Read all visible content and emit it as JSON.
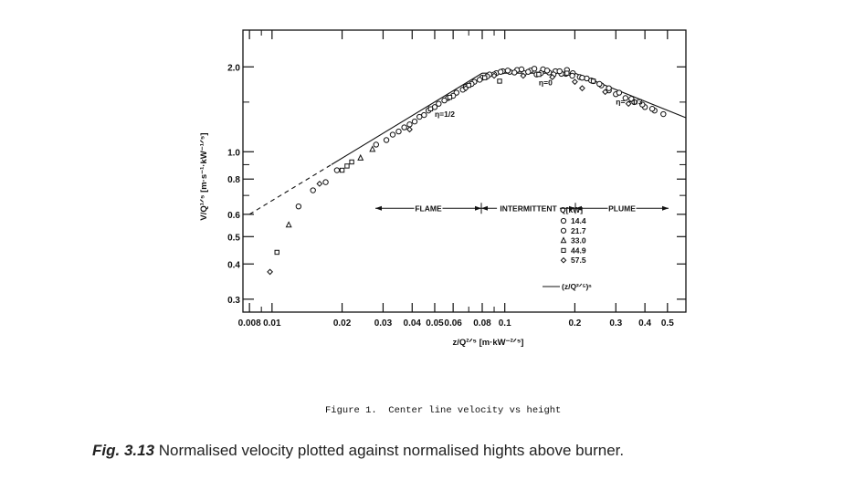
{
  "chart_data": {
    "type": "scatter",
    "xscale": "log",
    "yscale": "log",
    "xlim": [
      0.0075,
      0.6
    ],
    "ylim": [
      0.27,
      2.7
    ],
    "xlabel": "z/Q²ᐟ⁵ [m·kW⁻²ᐟ⁵]",
    "ylabel": "V/Q¹ᐟ⁵ [m·s⁻¹·kW⁻¹ᐟ⁵]",
    "x_ticks": [
      {
        "value": 0.008,
        "label": "0.008"
      },
      {
        "value": 0.01,
        "label": "0.01"
      },
      {
        "value": 0.02,
        "label": "0.02"
      },
      {
        "value": 0.03,
        "label": "0.03"
      },
      {
        "value": 0.04,
        "label": "0.04"
      },
      {
        "value": 0.05,
        "label": "0.05"
      },
      {
        "value": 0.06,
        "label": "0.06"
      },
      {
        "value": 0.08,
        "label": "0.08"
      },
      {
        "value": 0.1,
        "label": "0.1"
      },
      {
        "value": 0.2,
        "label": "0.2"
      },
      {
        "value": 0.3,
        "label": "0.3"
      },
      {
        "value": 0.4,
        "label": "0.4"
      },
      {
        "value": 0.5,
        "label": "0.5"
      }
    ],
    "y_ticks": [
      {
        "value": 0.3,
        "label": "0.3"
      },
      {
        "value": 0.4,
        "label": "0.4"
      },
      {
        "value": 0.5,
        "label": "0.5"
      },
      {
        "value": 0.6,
        "label": "0.6"
      },
      {
        "value": 0.8,
        "label": "0.8"
      },
      {
        "value": 1.0,
        "label": "1.0"
      },
      {
        "value": 2.0,
        "label": "2.0"
      }
    ],
    "legend": {
      "title": "Q[kW]",
      "placement": "center-right",
      "entries": [
        {
          "marker": "circle",
          "label": "14.4"
        },
        {
          "marker": "circle",
          "label": "21.7"
        },
        {
          "marker": "triangle",
          "label": "33.0"
        },
        {
          "marker": "square",
          "label": "44.9"
        },
        {
          "marker": "diamond",
          "label": "57.5"
        }
      ],
      "line_label": "(z/Q²ᐟ⁵)ⁿ"
    },
    "regions": [
      {
        "label": "FLAME",
        "x_from": 0.03,
        "x_to": 0.08
      },
      {
        "label": "INTERMITTENT",
        "x_from": 0.08,
        "x_to": 0.2
      },
      {
        "label": "PLUME",
        "x_from": 0.2,
        "x_to": 0.5
      }
    ],
    "annotations": [
      {
        "text": "η=1/2",
        "x": 0.05,
        "y": 1.33
      },
      {
        "text": "η=0",
        "x": 0.14,
        "y": 1.72
      },
      {
        "text": "η= −1/3",
        "x": 0.3,
        "y": 1.47
      }
    ],
    "fit_line": {
      "label": "(z/Q²ᐟ⁵)ⁿ",
      "segments": [
        {
          "eta": "1/2",
          "x": [
            0.008,
            0.08
          ],
          "y": [
            0.6,
            1.9
          ],
          "dashed_below": 0.018
        },
        {
          "eta": "0",
          "x": [
            0.08,
            0.2
          ],
          "y": [
            1.9,
            1.9
          ]
        },
        {
          "eta": "-1/3",
          "x": [
            0.2,
            0.6
          ],
          "y": [
            1.9,
            1.32
          ]
        }
      ]
    },
    "series": [
      {
        "name": "14.4",
        "marker": "circle",
        "x": [
          0.031,
          0.035,
          0.039,
          0.043,
          0.047,
          0.052,
          0.057,
          0.062,
          0.068,
          0.074,
          0.08,
          0.086,
          0.092,
          0.098,
          0.105,
          0.113,
          0.121,
          0.129,
          0.137,
          0.146,
          0.155,
          0.165,
          0.175,
          0.185,
          0.196,
          0.21,
          0.225,
          0.24,
          0.26,
          0.28,
          0.3,
          0.33,
          0.36,
          0.4,
          0.44,
          0.48
        ],
        "y": [
          1.1,
          1.18,
          1.25,
          1.33,
          1.4,
          1.48,
          1.55,
          1.62,
          1.7,
          1.77,
          1.83,
          1.88,
          1.9,
          1.93,
          1.92,
          1.95,
          1.9,
          1.94,
          1.88,
          1.96,
          1.91,
          1.93,
          1.89,
          1.95,
          1.9,
          1.84,
          1.82,
          1.78,
          1.72,
          1.65,
          1.6,
          1.55,
          1.5,
          1.44,
          1.4,
          1.36
        ]
      },
      {
        "name": "21.7",
        "marker": "circle",
        "x": [
          0.013,
          0.015,
          0.017,
          0.019,
          0.028,
          0.033,
          0.037,
          0.041,
          0.045,
          0.05,
          0.055,
          0.06,
          0.066,
          0.072,
          0.078,
          0.084,
          0.09,
          0.096,
          0.103,
          0.11,
          0.118,
          0.126,
          0.134,
          0.143,
          0.152,
          0.162,
          0.172,
          0.183,
          0.195,
          0.215,
          0.235,
          0.255,
          0.28,
          0.31,
          0.35,
          0.39,
          0.43
        ],
        "y": [
          0.64,
          0.73,
          0.78,
          0.86,
          1.06,
          1.15,
          1.22,
          1.28,
          1.35,
          1.44,
          1.52,
          1.58,
          1.66,
          1.74,
          1.8,
          1.85,
          1.88,
          1.92,
          1.94,
          1.91,
          1.96,
          1.92,
          1.97,
          1.9,
          1.94,
          1.88,
          1.93,
          1.89,
          1.86,
          1.83,
          1.79,
          1.74,
          1.68,
          1.62,
          1.54,
          1.47,
          1.42
        ]
      },
      {
        "name": "33.0",
        "marker": "triangle",
        "x": [
          0.0118,
          0.024,
          0.027
        ],
        "y": [
          0.55,
          0.95,
          1.02
        ]
      },
      {
        "name": "44.9",
        "marker": "square",
        "x": [
          0.0105,
          0.02,
          0.021,
          0.022,
          0.048,
          0.058,
          0.07,
          0.082,
          0.095,
          0.14,
          0.185,
          0.24
        ],
        "y": [
          0.44,
          0.86,
          0.89,
          0.92,
          1.42,
          1.56,
          1.72,
          1.83,
          1.78,
          1.88,
          1.9,
          1.78
        ]
      },
      {
        "name": "57.5",
        "marker": "diamond",
        "x": [
          0.0098,
          0.016,
          0.039,
          0.068,
          0.09,
          0.12,
          0.16,
          0.2,
          0.215,
          0.27,
          0.34
        ],
        "y": [
          0.375,
          0.77,
          1.2,
          1.68,
          1.86,
          1.86,
          1.84,
          1.77,
          1.68,
          1.63,
          1.48
        ]
      }
    ]
  },
  "text": {
    "figure_title": "Figure 1.  Center line velocity vs height",
    "caption_label": "Fig. 3.13",
    "caption_text": " Normalised velocity plotted against normalised hights above burner."
  }
}
